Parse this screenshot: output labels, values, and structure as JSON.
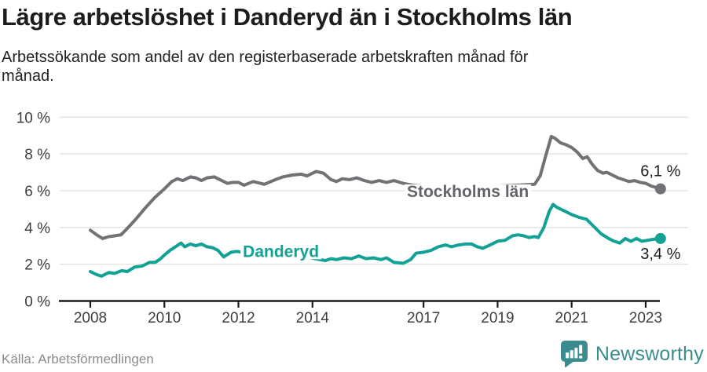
{
  "header": {
    "title": "Lägre arbetslöshet i Danderyd än i Stockholms län",
    "subtitle": "Arbetssökande som andel av den registerbaserade arbetskraften månad för månad."
  },
  "footer": {
    "source": "Källa: Arbetsförmedlingen",
    "brand": "Newsworthy"
  },
  "colors": {
    "stockholm_line": "#717176",
    "stockholm_label": "#64646a",
    "danderyd_line": "#12a195",
    "grid": "#e1e1e1",
    "axis": "#1a1a1a",
    "tick_text": "#3d3d3d",
    "value_text": "#1d1d1d",
    "source_text": "#8b8b8b",
    "brand_teal": "#3a8c8e"
  },
  "chart_data": {
    "type": "line",
    "title": "Lägre arbetslöshet i Danderyd än i Stockholms län",
    "subtitle": "Arbetssökande som andel av den registerbaserade arbetskraften månad för månad.",
    "ylabel": "",
    "xlabel": "",
    "ylim": [
      0,
      10
    ],
    "yticks": [
      0,
      2,
      4,
      6,
      8,
      10
    ],
    "ytick_labels": [
      "0 %",
      "2 %",
      "4 %",
      "6 %",
      "8 %",
      "10 %"
    ],
    "xticks": [
      2008,
      2010,
      2012,
      2014,
      2017,
      2019,
      2021,
      2023
    ],
    "xtick_labels": [
      "2008",
      "2010",
      "2012",
      "2014",
      "2017",
      "2019",
      "2021",
      "2023"
    ],
    "grid": "horizontal",
    "legend_position": "inline-labels",
    "series": [
      {
        "name": "Stockholms län",
        "end_value_label": "6,1 %",
        "label_at": [
          2016.55,
          5.66
        ],
        "points": [
          [
            2008.0,
            3.85
          ],
          [
            2008.17,
            3.6
          ],
          [
            2008.33,
            3.4
          ],
          [
            2008.5,
            3.5
          ],
          [
            2008.67,
            3.55
          ],
          [
            2008.83,
            3.6
          ],
          [
            2009.0,
            3.95
          ],
          [
            2009.25,
            4.5
          ],
          [
            2009.5,
            5.1
          ],
          [
            2009.75,
            5.65
          ],
          [
            2010.0,
            6.1
          ],
          [
            2010.2,
            6.5
          ],
          [
            2010.35,
            6.65
          ],
          [
            2010.5,
            6.55
          ],
          [
            2010.7,
            6.75
          ],
          [
            2010.85,
            6.7
          ],
          [
            2011.0,
            6.55
          ],
          [
            2011.15,
            6.7
          ],
          [
            2011.35,
            6.75
          ],
          [
            2011.5,
            6.6
          ],
          [
            2011.7,
            6.4
          ],
          [
            2011.85,
            6.45
          ],
          [
            2012.0,
            6.45
          ],
          [
            2012.15,
            6.3
          ],
          [
            2012.4,
            6.5
          ],
          [
            2012.7,
            6.35
          ],
          [
            2013.0,
            6.6
          ],
          [
            2013.2,
            6.75
          ],
          [
            2013.45,
            6.85
          ],
          [
            2013.7,
            6.9
          ],
          [
            2013.85,
            6.8
          ],
          [
            2014.1,
            7.05
          ],
          [
            2014.3,
            6.95
          ],
          [
            2014.5,
            6.6
          ],
          [
            2014.65,
            6.5
          ],
          [
            2014.8,
            6.65
          ],
          [
            2015.0,
            6.6
          ],
          [
            2015.2,
            6.7
          ],
          [
            2015.4,
            6.55
          ],
          [
            2015.6,
            6.45
          ],
          [
            2015.8,
            6.55
          ],
          [
            2016.0,
            6.45
          ],
          [
            2016.2,
            6.55
          ],
          [
            2016.45,
            6.4
          ],
          [
            2016.7,
            6.3
          ],
          [
            2017.0,
            6.25
          ],
          [
            2017.5,
            6.2
          ],
          [
            2018.0,
            6.15
          ],
          [
            2018.5,
            6.2
          ],
          [
            2019.0,
            6.25
          ],
          [
            2019.5,
            6.3
          ],
          [
            2020.0,
            6.35
          ],
          [
            2020.15,
            6.8
          ],
          [
            2020.3,
            7.9
          ],
          [
            2020.45,
            8.95
          ],
          [
            2020.55,
            8.85
          ],
          [
            2020.7,
            8.6
          ],
          [
            2020.85,
            8.5
          ],
          [
            2021.0,
            8.35
          ],
          [
            2021.15,
            8.1
          ],
          [
            2021.3,
            7.75
          ],
          [
            2021.42,
            7.85
          ],
          [
            2021.55,
            7.45
          ],
          [
            2021.7,
            7.1
          ],
          [
            2021.85,
            6.95
          ],
          [
            2021.95,
            7.0
          ],
          [
            2022.1,
            6.85
          ],
          [
            2022.25,
            6.7
          ],
          [
            2022.4,
            6.6
          ],
          [
            2022.55,
            6.5
          ],
          [
            2022.7,
            6.55
          ],
          [
            2022.85,
            6.45
          ],
          [
            2023.0,
            6.4
          ],
          [
            2023.15,
            6.25
          ],
          [
            2023.4,
            6.1
          ]
        ]
      },
      {
        "name": "Danderyd",
        "end_value_label": "3,4 %",
        "label_at": [
          2012.12,
          2.4
        ],
        "points": [
          [
            2008.0,
            1.6
          ],
          [
            2008.15,
            1.45
          ],
          [
            2008.3,
            1.35
          ],
          [
            2008.5,
            1.55
          ],
          [
            2008.65,
            1.5
          ],
          [
            2008.85,
            1.65
          ],
          [
            2009.0,
            1.6
          ],
          [
            2009.2,
            1.85
          ],
          [
            2009.4,
            1.9
          ],
          [
            2009.6,
            2.1
          ],
          [
            2009.75,
            2.1
          ],
          [
            2009.9,
            2.3
          ],
          [
            2010.0,
            2.5
          ],
          [
            2010.15,
            2.75
          ],
          [
            2010.3,
            2.95
          ],
          [
            2010.45,
            3.15
          ],
          [
            2010.55,
            2.95
          ],
          [
            2010.7,
            3.1
          ],
          [
            2010.85,
            3.0
          ],
          [
            2011.0,
            3.1
          ],
          [
            2011.15,
            2.95
          ],
          [
            2011.3,
            2.9
          ],
          [
            2011.45,
            2.75
          ],
          [
            2011.6,
            2.4
          ],
          [
            2011.8,
            2.65
          ],
          [
            2011.95,
            2.7
          ],
          [
            2012.1,
            2.65
          ],
          [
            2012.35,
            2.8
          ],
          [
            2012.6,
            2.7
          ],
          [
            2012.85,
            2.6
          ],
          [
            2013.1,
            2.55
          ],
          [
            2013.4,
            2.5
          ],
          [
            2013.7,
            2.45
          ],
          [
            2013.95,
            2.35
          ],
          [
            2014.2,
            2.25
          ],
          [
            2014.35,
            2.2
          ],
          [
            2014.5,
            2.3
          ],
          [
            2014.65,
            2.25
          ],
          [
            2014.85,
            2.35
          ],
          [
            2015.05,
            2.3
          ],
          [
            2015.25,
            2.45
          ],
          [
            2015.45,
            2.3
          ],
          [
            2015.65,
            2.35
          ],
          [
            2015.85,
            2.25
          ],
          [
            2016.0,
            2.35
          ],
          [
            2016.2,
            2.1
          ],
          [
            2016.45,
            2.05
          ],
          [
            2016.65,
            2.25
          ],
          [
            2016.8,
            2.6
          ],
          [
            2017.0,
            2.65
          ],
          [
            2017.2,
            2.75
          ],
          [
            2017.4,
            2.95
          ],
          [
            2017.6,
            3.05
          ],
          [
            2017.75,
            2.95
          ],
          [
            2017.95,
            3.05
          ],
          [
            2018.15,
            3.1
          ],
          [
            2018.3,
            3.1
          ],
          [
            2018.45,
            2.95
          ],
          [
            2018.6,
            2.87
          ],
          [
            2018.75,
            3.0
          ],
          [
            2019.0,
            3.25
          ],
          [
            2019.2,
            3.3
          ],
          [
            2019.4,
            3.55
          ],
          [
            2019.55,
            3.6
          ],
          [
            2019.7,
            3.55
          ],
          [
            2019.85,
            3.45
          ],
          [
            2020.0,
            3.5
          ],
          [
            2020.1,
            3.45
          ],
          [
            2020.25,
            4.0
          ],
          [
            2020.4,
            4.9
          ],
          [
            2020.5,
            5.25
          ],
          [
            2020.6,
            5.1
          ],
          [
            2020.75,
            4.95
          ],
          [
            2020.9,
            4.8
          ],
          [
            2021.0,
            4.7
          ],
          [
            2021.2,
            4.55
          ],
          [
            2021.4,
            4.45
          ],
          [
            2021.5,
            4.25
          ],
          [
            2021.65,
            3.95
          ],
          [
            2021.8,
            3.65
          ],
          [
            2022.0,
            3.4
          ],
          [
            2022.15,
            3.25
          ],
          [
            2022.3,
            3.15
          ],
          [
            2022.45,
            3.4
          ],
          [
            2022.6,
            3.25
          ],
          [
            2022.75,
            3.4
          ],
          [
            2022.9,
            3.25
          ],
          [
            2023.05,
            3.3
          ],
          [
            2023.2,
            3.35
          ],
          [
            2023.4,
            3.4
          ]
        ]
      }
    ]
  }
}
